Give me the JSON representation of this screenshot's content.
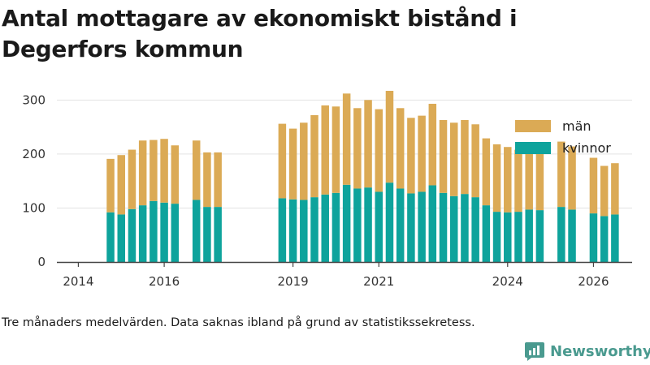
{
  "title": "Antal mottagare av ekonomiskt bistånd i Degerfors kommun",
  "footnote": "Tre månaders medelvärden. Data saknas ibland på grund av statistikssekretess.",
  "brand": {
    "name": "Newsworthy",
    "icon": "newsworthy-logo-icon"
  },
  "colors": {
    "kvinnor": "#0ea39c",
    "man": "#dbaa55",
    "grid": "#e3e3e3",
    "axis": "#444444"
  },
  "chart_data": {
    "type": "bar",
    "stacked": true,
    "title": "Antal mottagare av ekonomiskt bistånd i Degerfors kommun",
    "xlabel": "",
    "ylabel": "",
    "ylim": [
      0,
      320
    ],
    "yticks": [
      0,
      100,
      200,
      300
    ],
    "xlim": [
      2013.5,
      2026.9
    ],
    "xticks": [
      2014,
      2016,
      2019,
      2021,
      2024,
      2026
    ],
    "legend": [
      "män",
      "kvinnor"
    ],
    "legend_position": "top-right",
    "series": [
      {
        "name": "kvinnor",
        "color": "#0ea39c",
        "x": [
          2014.75,
          2015.0,
          2015.25,
          2015.5,
          2015.75,
          2016.0,
          2016.25,
          2016.75,
          2017.0,
          2017.25,
          2018.75,
          2019.0,
          2019.25,
          2019.5,
          2019.75,
          2020.0,
          2020.25,
          2020.5,
          2020.75,
          2021.0,
          2021.25,
          2021.5,
          2021.75,
          2022.0,
          2022.25,
          2022.5,
          2022.75,
          2023.0,
          2023.25,
          2023.5,
          2023.75,
          2024.0,
          2024.25,
          2024.5,
          2024.75,
          2025.25,
          2025.5,
          2026.0,
          2026.25,
          2026.5
        ],
        "values": [
          92,
          88,
          98,
          105,
          113,
          110,
          108,
          115,
          102,
          102,
          118,
          116,
          115,
          120,
          125,
          128,
          143,
          136,
          138,
          130,
          147,
          136,
          127,
          130,
          142,
          128,
          122,
          126,
          120,
          105,
          93,
          92,
          93,
          97,
          96,
          102,
          97,
          90,
          85,
          88
        ]
      },
      {
        "name": "män",
        "color": "#dbaa55",
        "x": [
          2014.75,
          2015.0,
          2015.25,
          2015.5,
          2015.75,
          2016.0,
          2016.25,
          2016.75,
          2017.0,
          2017.25,
          2018.75,
          2019.0,
          2019.25,
          2019.5,
          2019.75,
          2020.0,
          2020.25,
          2020.5,
          2020.75,
          2021.0,
          2021.25,
          2021.5,
          2021.75,
          2022.0,
          2022.25,
          2022.5,
          2022.75,
          2023.0,
          2023.25,
          2023.5,
          2023.75,
          2024.0,
          2024.25,
          2024.5,
          2024.75,
          2025.25,
          2025.5,
          2026.0,
          2026.25,
          2026.5
        ],
        "values": [
          99,
          110,
          110,
          120,
          113,
          118,
          108,
          110,
          101,
          101,
          138,
          131,
          143,
          152,
          165,
          160,
          169,
          149,
          162,
          153,
          170,
          149,
          140,
          141,
          151,
          135,
          136,
          137,
          135,
          124,
          125,
          121,
          115,
          115,
          118,
          121,
          117,
          103,
          93,
          95
        ]
      }
    ]
  }
}
